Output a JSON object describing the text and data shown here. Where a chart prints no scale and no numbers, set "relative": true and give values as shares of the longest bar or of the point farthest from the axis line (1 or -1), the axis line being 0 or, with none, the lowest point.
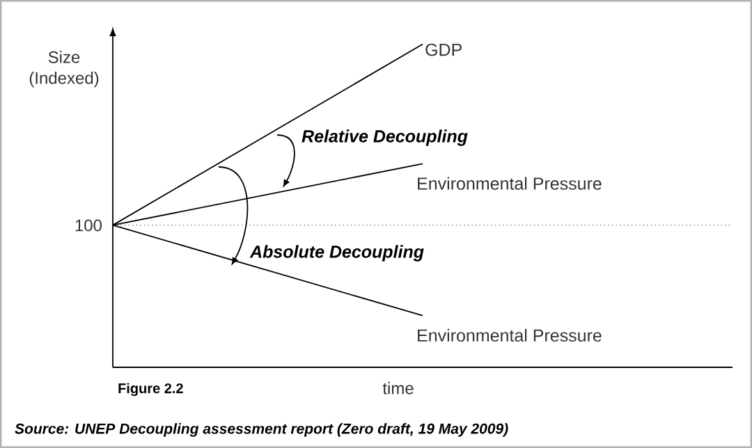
{
  "chart_data": {
    "type": "line",
    "relative": true,
    "xlabel": "time",
    "ylabel": "Size (Indexed)",
    "categories": [
      null,
      null,
      null
    ],
    "series": [
      {
        "name": "GDP",
        "color": "#000000",
        "values": [
          0.44,
          1,
          null
        ]
      },
      {
        "name": "Environmental Pressure",
        "color": "#000000",
        "values": [
          0.44,
          0.63,
          null
        ]
      },
      {
        "name": "Environmental Pressure",
        "color": "#000000",
        "values": [
          0.44,
          0.16,
          null
        ]
      }
    ],
    "ref_lines": [
      {
        "axis": "y",
        "value": 0.44,
        "color": "#999999",
        "line_style": "dotted"
      }
    ],
    "annotations": [
      "100",
      "Relative Decoupling",
      "Absolute Decoupling",
      "Figure 2.2",
      "Source: UNEP Decoupling assessment report (Zero draft, 19 May 2009)"
    ],
    "marker": "none",
    "line_style": "solid",
    "legend": false
  }
}
